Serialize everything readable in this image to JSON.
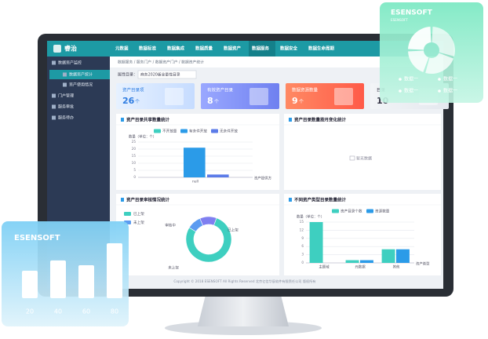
{
  "nav": {
    "logo": "睿治",
    "items": [
      "元数据",
      "数据标准",
      "数据集成",
      "数据质量",
      "数据资产",
      "数据服务",
      "数据安全",
      "数据生命周期"
    ],
    "active": 5
  },
  "sidebar": {
    "items": [
      "数据资产监控",
      "数据资产统计",
      "资产使用情况",
      "门户管理",
      "服务审批",
      "服务待办"
    ],
    "active": 1
  },
  "breadcrumb": "数据服务 / 服务门户 / 数据资产门户 / 数据资产统计",
  "filter": {
    "label": "属性目录：",
    "value": "商务2020版全量性目录"
  },
  "cards": [
    {
      "title": "资产目录项",
      "value": 26,
      "unit": "个"
    },
    {
      "title": "有效资产目录",
      "value": 8,
      "unit": "个"
    },
    {
      "title": "数据资源数量",
      "value": 9,
      "unit": "个"
    },
    {
      "title": "目录",
      "value": 10
    }
  ],
  "charts": [
    {
      "type": "bar",
      "title": "资产目录共享数量统计",
      "y_label": "数量（单位：个）",
      "x_label": "资产提供方",
      "categories": [
        "null"
      ],
      "series": [
        {
          "name": "不开放量",
          "color": "#3ecfc0",
          "values": [
            0
          ]
        },
        {
          "name": "有条件开放",
          "color": "#2b9be8",
          "values": [
            21
          ]
        },
        {
          "name": "无条件开放",
          "color": "#5b7be8",
          "values": [
            2
          ]
        }
      ],
      "ylim": [
        0,
        25
      ],
      "yticks": [
        0,
        5,
        10,
        15,
        20,
        25
      ],
      "grid": true
    },
    {
      "type": "empty",
      "title": "资产目录数量按月变化统计",
      "message": "暂无数据"
    },
    {
      "type": "donut",
      "title": "资产目录审核情况统计",
      "categories": [
        "审核中",
        "已上架",
        "未上架"
      ],
      "values": [
        12,
        78,
        10
      ],
      "colors": [
        "#7f7ff0",
        "#3ecfc0",
        "#5b9bf0"
      ]
    },
    {
      "type": "bar",
      "title": "不同资产类型目录数量统计",
      "y_label": "数量（单位：个）",
      "x_label": "资产类型",
      "categories": [
        "主题域",
        "元数据",
        "其他"
      ],
      "series": [
        {
          "name": "资产目录个数",
          "color": "#3ecfc0",
          "values": [
            15,
            1,
            5
          ]
        },
        {
          "name": "资源数量",
          "color": "#2b9be8",
          "values": [
            0,
            1,
            5
          ]
        }
      ],
      "ylim": [
        0,
        15
      ],
      "yticks": [
        0,
        3,
        6,
        9,
        12,
        15
      ],
      "grid": true
    }
  ],
  "footer": "Copyright © 2018 ESENSOFT All Rights Reserved 北京亿信华辰软件有限责任公司 版权所有",
  "badges": [
    {
      "type": "pie",
      "brand": "ESENSOFT",
      "sub": "ESENSOFT",
      "categories": [
        "数据一",
        "数据一",
        "数据一",
        "数据一"
      ],
      "values": [
        30,
        25,
        20,
        25
      ]
    },
    {
      "type": "bar",
      "brand": "ESENSOFT",
      "categories": [
        "20",
        "40",
        "60",
        "80"
      ],
      "values": [
        40,
        55,
        48,
        80
      ],
      "ylim": [
        0,
        80
      ]
    }
  ]
}
